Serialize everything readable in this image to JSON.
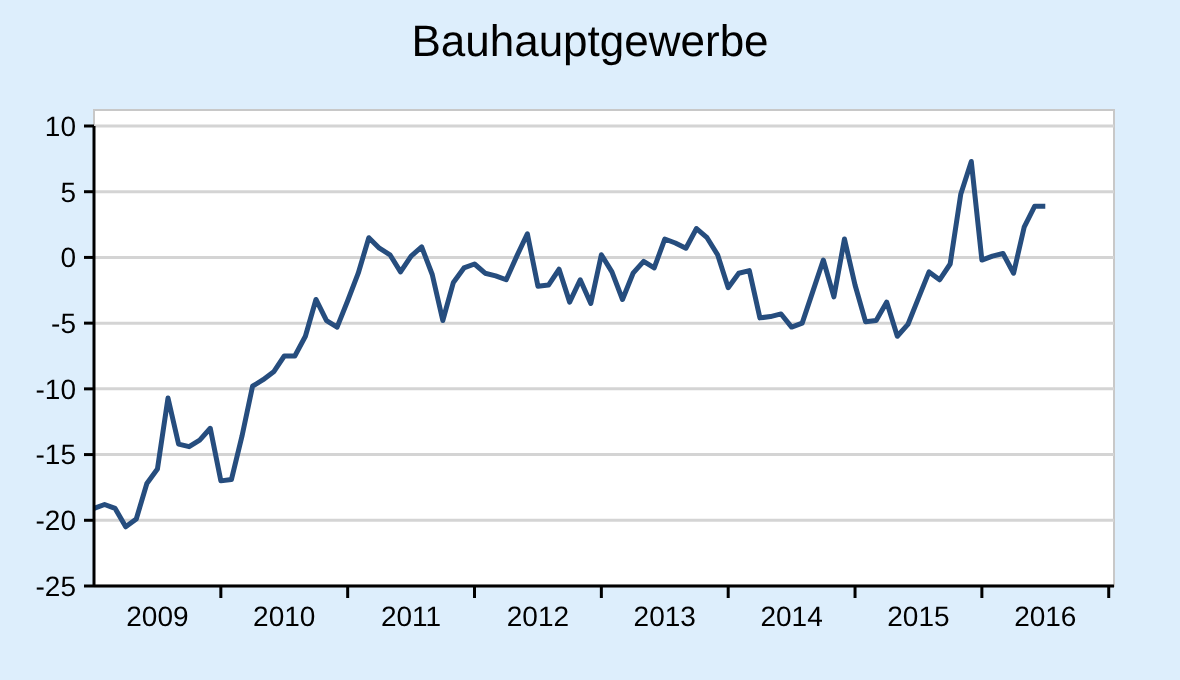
{
  "chart_data": {
    "type": "line",
    "title": "Bauhauptgewerbe",
    "categories": [
      null,
      null,
      null,
      null,
      null,
      null,
      "2009",
      null,
      null,
      null,
      null,
      null,
      null,
      null,
      null,
      null,
      null,
      null,
      "2010",
      null,
      null,
      null,
      null,
      null,
      null,
      null,
      null,
      null,
      null,
      null,
      "2011",
      null,
      null,
      null,
      null,
      null,
      null,
      null,
      null,
      null,
      null,
      null,
      "2012",
      null,
      null,
      null,
      null,
      null,
      null,
      null,
      null,
      null,
      null,
      null,
      "2013",
      null,
      null,
      null,
      null,
      null,
      null,
      null,
      null,
      null,
      null,
      null,
      "2014",
      null,
      null,
      null,
      null,
      null,
      null,
      null,
      null,
      null,
      null,
      null,
      "2015",
      null,
      null,
      null,
      null,
      null,
      null,
      null,
      null,
      null,
      null,
      null,
      "2016"
    ],
    "series": [
      {
        "color": "#264d7e",
        "values": [
          -19.1,
          -18.8,
          -19.1,
          -20.5,
          -19.9,
          -17.2,
          -16.1,
          -10.7,
          -14.2,
          -14.4,
          -13.9,
          -13.0,
          -17.0,
          -16.9,
          -13.6,
          -9.8,
          -9.3,
          -8.7,
          -7.5,
          -7.5,
          -6.0,
          -3.2,
          -4.8,
          -5.3,
          -3.3,
          -1.2,
          1.5,
          0.7,
          0.2,
          -1.1,
          0.1,
          0.8,
          -1.3,
          -4.8,
          -1.9,
          -0.8,
          -0.5,
          -1.2,
          -1.4,
          -1.7,
          0.1,
          1.8,
          -2.2,
          -2.1,
          -0.9,
          -3.4,
          -1.7,
          -3.5,
          0.2,
          -1.1,
          -3.2,
          -1.2,
          -0.3,
          -0.8,
          1.4,
          1.1,
          0.7,
          2.2,
          1.5,
          0.2,
          -2.3,
          -1.2,
          -1.0,
          -4.6,
          -4.5,
          -4.3,
          -5.3,
          -5.0,
          -2.6,
          -0.2,
          -3.0,
          1.4,
          -2.1,
          -4.9,
          -4.8,
          -3.4,
          -6.0,
          -5.1,
          -3.1,
          -1.1,
          -1.7,
          -0.5,
          4.8,
          7.3,
          -0.2,
          0.1,
          0.3,
          -1.2,
          2.3,
          3.9,
          3.9
        ]
      }
    ],
    "ylim": [
      -25,
      10
    ],
    "yticks": [
      -25,
      -20,
      -15,
      -10,
      -5,
      0,
      5,
      10
    ],
    "grid": "y",
    "marker": "none",
    "line_style": "solid"
  }
}
